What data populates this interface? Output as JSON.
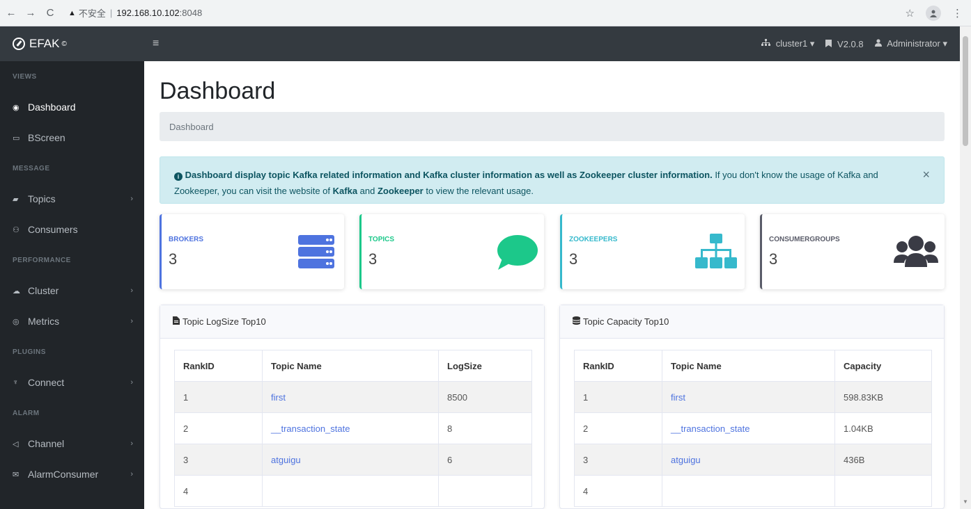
{
  "browser": {
    "back": "←",
    "forward": "→",
    "reload": "C",
    "insecure_label": "不安全",
    "separator": "|",
    "host": "192.168.10.102",
    "port": ":8048",
    "star": "☆",
    "menu": "⋮"
  },
  "topbar": {
    "brand": "EFAK",
    "brand_mark": "©",
    "menu_icon": "≡",
    "cluster": "cluster1",
    "version": "V2.0.8",
    "user": "Administrator"
  },
  "sidebar": {
    "sections": [
      {
        "heading": "VIEWS",
        "items": [
          {
            "label": "Dashboard",
            "icon": "tachometer-icon",
            "glyph": "◉",
            "active": true,
            "has_chevron": false
          },
          {
            "label": "BScreen",
            "icon": "desktop-icon",
            "glyph": "▭",
            "active": false,
            "has_chevron": false
          }
        ]
      },
      {
        "heading": "MESSAGE",
        "items": [
          {
            "label": "Topics",
            "icon": "comment-icon",
            "glyph": "▰",
            "active": false,
            "has_chevron": true
          },
          {
            "label": "Consumers",
            "icon": "users-icon",
            "glyph": "⚇",
            "active": false,
            "has_chevron": false
          }
        ]
      },
      {
        "heading": "PERFORMANCE",
        "items": [
          {
            "label": "Cluster",
            "icon": "cloud-icon",
            "glyph": "☁",
            "active": false,
            "has_chevron": true
          },
          {
            "label": "Metrics",
            "icon": "eye-icon",
            "glyph": "◎",
            "active": false,
            "has_chevron": true
          }
        ]
      },
      {
        "heading": "PLUGINS",
        "items": [
          {
            "label": "Connect",
            "icon": "plug-icon",
            "glyph": "♆",
            "active": false,
            "has_chevron": true
          }
        ]
      },
      {
        "heading": "ALARM",
        "items": [
          {
            "label": "Channel",
            "icon": "bullhorn-icon",
            "glyph": "◁",
            "active": false,
            "has_chevron": true
          },
          {
            "label": "AlarmConsumer",
            "icon": "envelope-icon",
            "glyph": "✉",
            "active": false,
            "has_chevron": true
          }
        ]
      }
    ]
  },
  "main": {
    "title": "Dashboard",
    "breadcrumb": "Dashboard",
    "alert": {
      "bold": "Dashboard display topic Kafka related information and Kafka cluster information as well as Zookeeper cluster information.",
      "text1": " If you don't know the usage of Kafka and Zookeeper, you can visit the website of ",
      "kafka": "Kafka",
      "text2": " and ",
      "zookeeper": "Zookeeper",
      "text3": " to view the relevant usage.",
      "close": "×"
    },
    "cards": [
      {
        "label": "BROKERS",
        "value": "3",
        "color": "#4e73df",
        "icon": "server-icon"
      },
      {
        "label": "TOPICS",
        "value": "3",
        "color": "#1cc88a",
        "icon": "comment-icon"
      },
      {
        "label": "ZOOKEEPERS",
        "value": "3",
        "color": "#36b9cc",
        "icon": "sitemap-icon"
      },
      {
        "label": "CONSUMERGROUPS",
        "value": "3",
        "color": "#5a5c69",
        "icon": "users-icon"
      }
    ],
    "logsize_panel": {
      "title": "Topic LogSize Top10",
      "headers": [
        "RankID",
        "Topic Name",
        "LogSize"
      ],
      "rows": [
        [
          "1",
          "first",
          "8500"
        ],
        [
          "2",
          "__transaction_state",
          "8"
        ],
        [
          "3",
          "atguigu",
          "6"
        ],
        [
          "4",
          "",
          ""
        ]
      ]
    },
    "capacity_panel": {
      "title": "Topic Capacity Top10",
      "headers": [
        "RankID",
        "Topic Name",
        "Capacity"
      ],
      "rows": [
        [
          "1",
          "first",
          "598.83KB"
        ],
        [
          "2",
          "__transaction_state",
          "1.04KB"
        ],
        [
          "3",
          "atguigu",
          "436B"
        ],
        [
          "4",
          "",
          ""
        ]
      ]
    }
  }
}
